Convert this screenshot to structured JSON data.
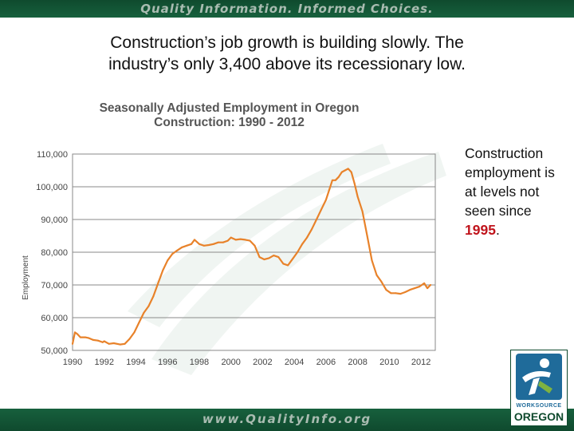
{
  "header": {
    "banner_text": "Quality Information. Informed Choices.",
    "headline_line1": "Construction’s job growth is building slowly. The",
    "headline_line2": "industry’s only 3,400 above its recessionary low."
  },
  "side_note": {
    "text_before": "Construction employment is at levels not seen since",
    "highlight": "1995",
    "text_after": "."
  },
  "footer": {
    "url": "www.QualityInfo.org",
    "logo_small": "WORKSOURCE",
    "logo_big": "OREGON"
  },
  "colors": {
    "line": "#e8822a",
    "highlight": "#c0141c",
    "banner": "#17603d",
    "logo_blue": "#1f6b9a"
  },
  "chart_data": {
    "type": "line",
    "title": "Seasonally Adjusted Employment in Oregon",
    "subtitle": "Construction:  1990 - 2012",
    "xlabel": "",
    "ylabel": "Employment",
    "xlim": [
      1990,
      2012.9
    ],
    "ylim": [
      50000,
      110000
    ],
    "x_ticks": [
      1990,
      1992,
      1994,
      1996,
      1998,
      2000,
      2002,
      2004,
      2006,
      2008,
      2010,
      2012
    ],
    "y_ticks": [
      50000,
      60000,
      70000,
      80000,
      90000,
      100000,
      110000
    ],
    "y_tick_labels": [
      "50,000",
      "60,000",
      "70,000",
      "80,000",
      "90,000",
      "100,000",
      "110,000"
    ],
    "grid": "horizontal",
    "series": [
      {
        "x": [
          1990.0,
          1990.15,
          1990.3,
          1990.5,
          1990.8,
          1991.0,
          1991.3,
          1991.6,
          1991.9,
          1992.0,
          1992.3,
          1992.6,
          1993.0,
          1993.3,
          1993.6,
          1993.9,
          1994.2,
          1994.5,
          1994.8,
          1995.1,
          1995.4,
          1995.7,
          1996.0,
          1996.3,
          1996.6,
          1996.9,
          1997.2,
          1997.5,
          1997.7,
          1998.0,
          1998.3,
          1998.6,
          1998.9,
          1999.2,
          1999.5,
          1999.8,
          2000.0,
          2000.3,
          2000.6,
          2000.9,
          2001.2,
          2001.5,
          2001.8,
          2002.1,
          2002.4,
          2002.7,
          2003.0,
          2003.3,
          2003.6,
          2003.9,
          2004.2,
          2004.5,
          2004.8,
          2005.1,
          2005.4,
          2005.7,
          2006.0,
          2006.2,
          2006.4,
          2006.6,
          2006.8,
          2007.0,
          2007.2,
          2007.4,
          2007.6,
          2007.8,
          2008.0,
          2008.3,
          2008.6,
          2008.9,
          2009.2,
          2009.5,
          2009.8,
          2010.1,
          2010.4,
          2010.7,
          2011.0,
          2011.3,
          2011.6,
          2011.9,
          2012.2,
          2012.4,
          2012.6
        ],
        "y": [
          52000,
          55500,
          55000,
          54000,
          54000,
          53800,
          53200,
          53000,
          52500,
          52800,
          52000,
          52200,
          51800,
          52000,
          53500,
          55500,
          58500,
          61500,
          63500,
          66500,
          70500,
          74500,
          77500,
          79500,
          80500,
          81500,
          82000,
          82500,
          83800,
          82500,
          82000,
          82200,
          82500,
          83000,
          83000,
          83500,
          84500,
          83800,
          84000,
          83800,
          83500,
          82000,
          78500,
          77800,
          78200,
          79000,
          78500,
          76500,
          76000,
          78000,
          80000,
          82500,
          84500,
          87000,
          90000,
          93000,
          96000,
          99000,
          102000,
          102000,
          103000,
          104500,
          105000,
          105500,
          104500,
          101000,
          97000,
          92500,
          85000,
          77500,
          73000,
          71000,
          68500,
          67500,
          67500,
          67300,
          67800,
          68500,
          69000,
          69500,
          70500,
          69000,
          70000
        ]
      }
    ]
  }
}
